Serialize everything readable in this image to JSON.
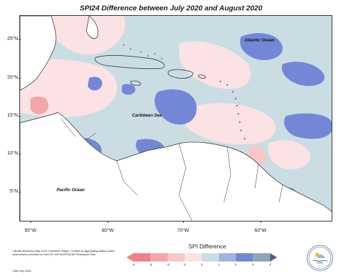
{
  "title": "SPI24 Difference between July 2020 and August 2020",
  "map": {
    "latitude_labels": [
      "25°N",
      "20°N",
      "15°N",
      "10°N",
      "5°N"
    ],
    "longitude_labels": [
      "90°W",
      "80°W",
      "70°W",
      "60°W"
    ],
    "ocean_labels": {
      "atlantic": "Atlantic Ocean",
      "caribbean": "Caribbean Sea",
      "pacific": "Pacific Ocean"
    }
  },
  "legend": {
    "title": "SPI Difference",
    "tick_labels": [
      "-4",
      "-3",
      "-2",
      "-1",
      "0",
      "1",
      "2",
      "3",
      "4"
    ],
    "colors": [
      "#f07f86",
      "#f4a6ab",
      "#f8c7ca",
      "#fbe2e4",
      "#c9dde3",
      "#9fb3e0",
      "#7487d6",
      "#8ea5b6",
      "#4d5f8d"
    ]
  },
  "footer": {
    "note": "Climate Monitoring Map of the Caribbean Region. Created by aggregating station based observations, provided by CariCOF, with NCEP/NCAR Reanalysis Data.",
    "credit": "CIMH Sep-2020"
  },
  "logo": {
    "text": "CIMH",
    "icon": "cimh-logo-icon"
  },
  "colors": {
    "light_blue": "#c9dde3",
    "mid_blue": "#7487d6",
    "pink": "#fbe2e4",
    "mid_pink": "#f8c7ca"
  }
}
